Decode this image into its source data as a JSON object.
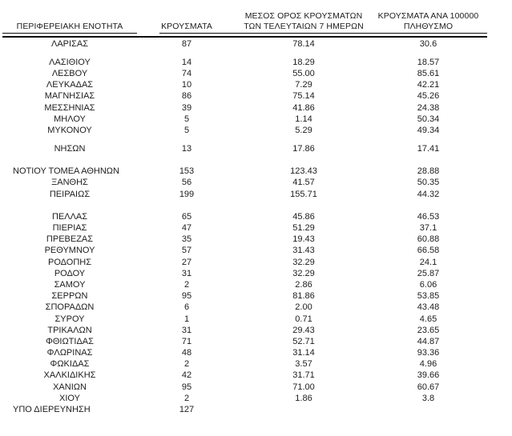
{
  "report_table": {
    "headers": {
      "region": "ΠΕΡΙΦΕΡΕΙΑΚΗ ΕΝΟΤΗΤΑ",
      "cases": "ΚΡΟΥΣΜΑΤΑ",
      "avg7": "ΜΕΣΟΣ ΟΡΟΣ ΚΡΟΥΣΜΑΤΩΝ\nΤΩΝ ΤΕΛΕΥΤΑΙΩΝ 7 ΗΜΕΡΩΝ",
      "per100k": "ΚΡΟΥΣΜΑΤΑ ΑΝΑ 100000\nΠΛΗΘΥΣΜΟ"
    },
    "rows": [
      {
        "region": "ΛΑΡΙΣΑΣ",
        "cases": "87",
        "avg7": "78.14",
        "per100k": "30.6"
      },
      {
        "spacer": "sm"
      },
      {
        "region": "ΛΑΣΙΘΙΟΥ",
        "cases": "14",
        "avg7": "18.29",
        "per100k": "18.57"
      },
      {
        "region": "ΛΕΣΒΟΥ",
        "cases": "74",
        "avg7": "55.00",
        "per100k": "85.61"
      },
      {
        "region": "ΛΕΥΚΑΔΑΣ",
        "cases": "10",
        "avg7": "7.29",
        "per100k": "42.21"
      },
      {
        "region": "ΜΑΓΝΗΣΙΑΣ",
        "cases": "86",
        "avg7": "75.14",
        "per100k": "45.26"
      },
      {
        "region": "ΜΕΣΣΗΝΙΑΣ",
        "cases": "39",
        "avg7": "41.86",
        "per100k": "24.38"
      },
      {
        "region": "ΜΗΛΟΥ",
        "cases": "5",
        "avg7": "1.14",
        "per100k": "50.34"
      },
      {
        "region": "ΜΥΚΟΝΟΥ",
        "cases": "5",
        "avg7": "5.29",
        "per100k": "49.34"
      },
      {
        "spacer": "sm"
      },
      {
        "region": "ΝΗΣΩΝ",
        "cases": "13",
        "avg7": "17.86",
        "per100k": "17.41"
      },
      {
        "spacer": "lg"
      },
      {
        "region": "ΝΟΤΙΟΥ ΤΟΜΕΑ ΑΘΗΝΩΝ",
        "cases": "153",
        "avg7": "123.43",
        "per100k": "28.88",
        "align": "left"
      },
      {
        "region": "ΞΑΝΘΗΣ",
        "cases": "56",
        "avg7": "41.57",
        "per100k": "50.35"
      },
      {
        "region": "ΠΕΙΡΑΙΩΣ",
        "cases": "199",
        "avg7": "155.71",
        "per100k": "44.32"
      },
      {
        "spacer": "lg"
      },
      {
        "region": "ΠΕΛΛΑΣ",
        "cases": "65",
        "avg7": "45.86",
        "per100k": "46.53"
      },
      {
        "region": "ΠΙΕΡΙΑΣ",
        "cases": "47",
        "avg7": "51.29",
        "per100k": "37.1"
      },
      {
        "region": "ΠΡΕΒΕΖΑΣ",
        "cases": "35",
        "avg7": "19.43",
        "per100k": "60.88"
      },
      {
        "region": "ΡΕΘΥΜΝΟΥ",
        "cases": "57",
        "avg7": "31.43",
        "per100k": "66.58"
      },
      {
        "region": "ΡΟΔΟΠΗΣ",
        "cases": "27",
        "avg7": "32.29",
        "per100k": "24.1"
      },
      {
        "region": "ΡΟΔΟΥ",
        "cases": "31",
        "avg7": "32.29",
        "per100k": "25.87"
      },
      {
        "region": "ΣΑΜΟΥ",
        "cases": "2",
        "avg7": "2.86",
        "per100k": "6.06"
      },
      {
        "region": "ΣΕΡΡΩΝ",
        "cases": "95",
        "avg7": "81.86",
        "per100k": "53.85"
      },
      {
        "region": "ΣΠΟΡΑΔΩΝ",
        "cases": "6",
        "avg7": "2.00",
        "per100k": "43.48"
      },
      {
        "region": "ΣΥΡΟΥ",
        "cases": "1",
        "avg7": "0.71",
        "per100k": "4.65"
      },
      {
        "region": "ΤΡΙΚΑΛΩΝ",
        "cases": "31",
        "avg7": "29.43",
        "per100k": "23.65"
      },
      {
        "region": "ΦΘΙΩΤΙΔΑΣ",
        "cases": "71",
        "avg7": "52.71",
        "per100k": "44.87"
      },
      {
        "region": "ΦΛΩΡΙΝΑΣ",
        "cases": "48",
        "avg7": "31.14",
        "per100k": "93.36"
      },
      {
        "region": "ΦΩΚΙΔΑΣ",
        "cases": "2",
        "avg7": "3.57",
        "per100k": "4.96"
      },
      {
        "region": "ΧΑΛΚΙΔΙΚΗΣ",
        "cases": "42",
        "avg7": "31.71",
        "per100k": "39.66"
      },
      {
        "region": "ΧΑΝΙΩΝ",
        "cases": "95",
        "avg7": "71.00",
        "per100k": "60.67"
      },
      {
        "region": "ΧΙΟΥ",
        "cases": "2",
        "avg7": "1.86",
        "per100k": "3.8"
      },
      {
        "region": "ΥΠΟ ΔΙΕΡΕΥΝΗΣΗ",
        "cases": "127",
        "avg7": "",
        "per100k": "",
        "align": "left"
      }
    ]
  }
}
